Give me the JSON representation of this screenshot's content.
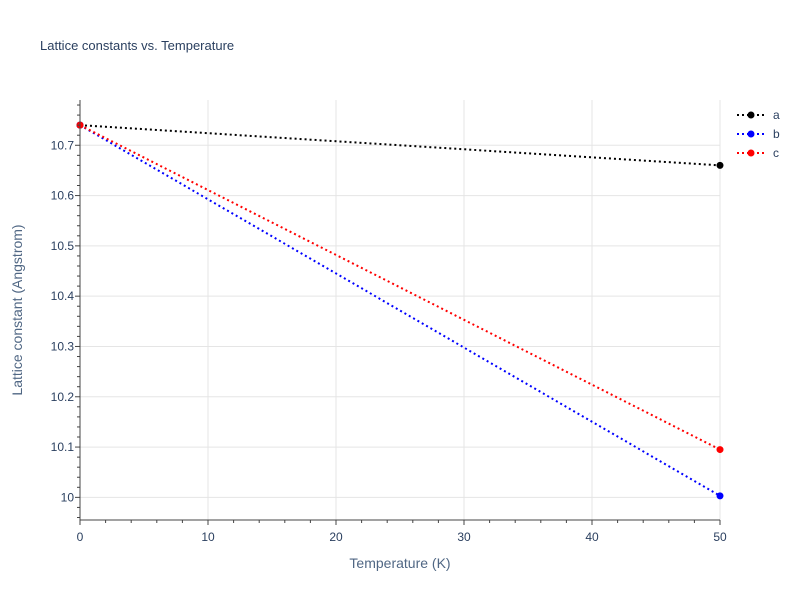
{
  "chart_data": {
    "type": "line",
    "title": "Lattice constants vs. Temperature",
    "xlabel": "Temperature (K)",
    "ylabel": "Lattice constant (Angstrom)",
    "xlim": [
      0,
      50
    ],
    "ylim": [
      9.955,
      10.79
    ],
    "x_ticks": [
      "0",
      "10",
      "20",
      "30",
      "40",
      "50"
    ],
    "y_ticks": [
      "10",
      "10.1",
      "10.2",
      "10.3",
      "10.4",
      "10.5",
      "10.6",
      "10.7"
    ],
    "grid": true,
    "legend_position": "top-right",
    "series": [
      {
        "name": "a",
        "color": "#000000",
        "line_style": "dotted",
        "x": [
          0,
          50
        ],
        "y": [
          10.74,
          10.66
        ]
      },
      {
        "name": "b",
        "color": "#0000ff",
        "line_style": "dotted",
        "x": [
          0,
          50
        ],
        "y": [
          10.74,
          10.003
        ]
      },
      {
        "name": "c",
        "color": "#ff0000",
        "line_style": "dotted",
        "x": [
          0,
          50
        ],
        "y": [
          10.74,
          10.095
        ]
      }
    ]
  }
}
